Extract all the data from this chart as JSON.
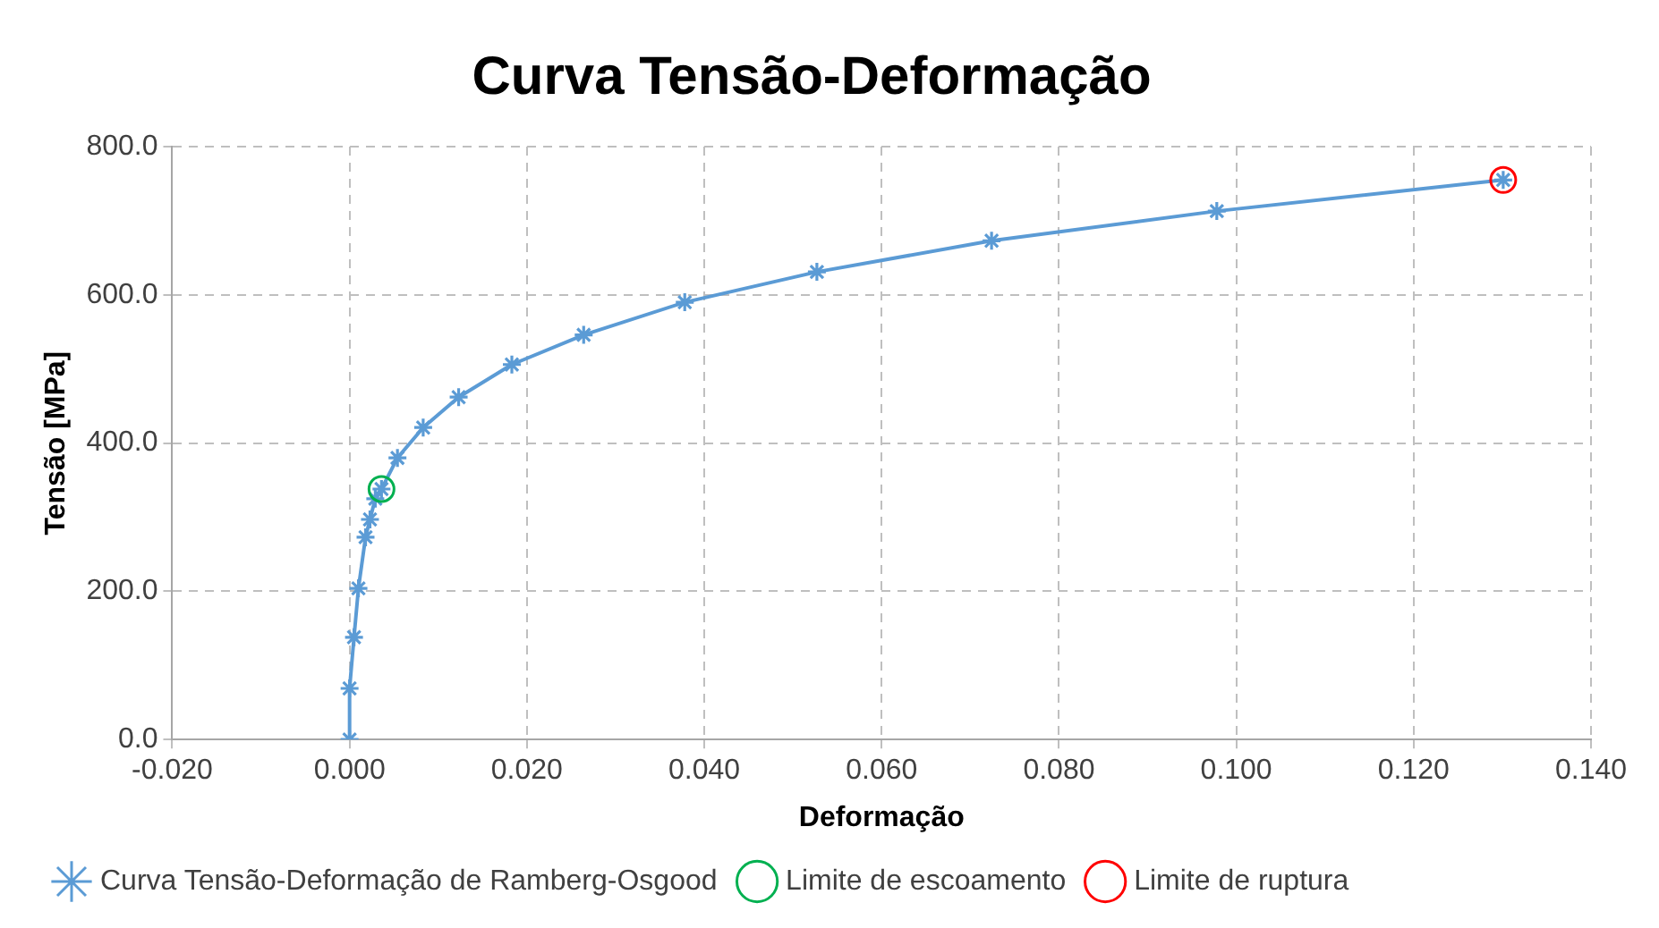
{
  "chart_data": {
    "type": "line",
    "title": "Curva Tensão-Deformação",
    "xlabel": "Deformação",
    "ylabel": "Tensão [MPa]",
    "xlim": [
      -0.02,
      0.14
    ],
    "xticks": [
      {
        "value": -0.02,
        "label": "-0.020"
      },
      {
        "value": 0,
        "label": "0.000"
      },
      {
        "value": 0.02,
        "label": "0.020"
      },
      {
        "value": 0.04,
        "label": "0.040"
      },
      {
        "value": 0.06,
        "label": "0.060"
      },
      {
        "value": 0.08,
        "label": "0.080"
      },
      {
        "value": 0.1,
        "label": "0.100"
      },
      {
        "value": 0.12,
        "label": "0.120"
      },
      {
        "value": 0.14,
        "label": "0.140"
      }
    ],
    "ylim": [
      0,
      800
    ],
    "yticks": [
      {
        "value": 0,
        "label": "0.0"
      },
      {
        "value": 200,
        "label": "200.0"
      },
      {
        "value": 400,
        "label": "400.0"
      },
      {
        "value": 600,
        "label": "600.0"
      },
      {
        "value": 800,
        "label": "800.0"
      }
    ],
    "grid": true,
    "legend": "bottom",
    "series": [
      {
        "name": "Curva Tensão-Deformação de Ramberg-Osgood",
        "type": "line",
        "color": "#5b9bd5",
        "marker": "cross",
        "x": [
          0,
          0,
          0.0005,
          0.001,
          0.0018,
          0.0023,
          0.0029,
          0.0036,
          0.0054,
          0.0083,
          0.0123,
          0.0183,
          0.0264,
          0.0378,
          0.0527,
          0.0724,
          0.0978,
          0.1301
        ],
        "values": [
          0,
          69,
          138,
          204,
          273,
          297,
          325,
          338,
          380,
          421,
          462,
          506,
          546,
          590,
          631,
          673,
          713,
          755
        ]
      },
      {
        "name": "Limite de escoamento",
        "type": "scatter",
        "color": "#00b050",
        "marker": "circle",
        "x": [
          0.0036
        ],
        "values": [
          338
        ]
      },
      {
        "name": "Limite de ruptura",
        "type": "scatter",
        "color": "#ff0000",
        "marker": "circle",
        "x": [
          0.1301
        ],
        "values": [
          755
        ]
      }
    ]
  }
}
